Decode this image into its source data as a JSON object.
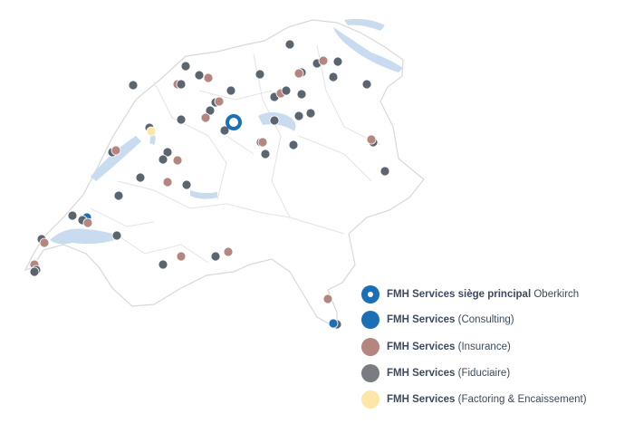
{
  "legend": [
    {
      "bold": "FMH Services siège principal",
      "detail": "Oberkirch"
    },
    {
      "bold": "FMH Services",
      "detail": "(Consulting)"
    },
    {
      "bold": "FMH Services",
      "detail": "(Insurance)"
    },
    {
      "bold": "FMH Services",
      "detail": "(Fiduciaire)"
    },
    {
      "bold": "FMH Services",
      "detail": "(Factoring & Encaissement)"
    }
  ]
}
